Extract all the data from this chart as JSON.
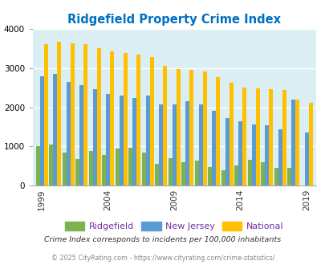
{
  "title": "Ridgefield Property Crime Index",
  "years": [
    1999,
    2000,
    2001,
    2002,
    2003,
    2004,
    2005,
    2006,
    2007,
    2008,
    2009,
    2010,
    2011,
    2012,
    2013,
    2014,
    2015,
    2016,
    2017,
    2018,
    2019,
    2020
  ],
  "ridgefield": [
    1010,
    1050,
    840,
    670,
    890,
    780,
    940,
    970,
    840,
    560,
    700,
    600,
    640,
    470,
    390,
    520,
    650,
    600,
    450,
    460,
    0,
    0
  ],
  "new_jersey": [
    2790,
    2850,
    2650,
    2560,
    2470,
    2350,
    2310,
    2230,
    2310,
    2080,
    2080,
    2160,
    2070,
    1920,
    1720,
    1640,
    1560,
    1550,
    1440,
    2190,
    1350,
    0
  ],
  "national": [
    3620,
    3670,
    3640,
    3610,
    3520,
    3440,
    3380,
    3340,
    3280,
    3060,
    2970,
    2950,
    2920,
    2770,
    2620,
    2510,
    2480,
    2470,
    2440,
    2190,
    2110,
    0
  ],
  "ridgefield_color": "#7db24e",
  "nj_color": "#5b9bd5",
  "national_color": "#ffc000",
  "bg_color": "#daeef3",
  "title_color": "#0070c0",
  "legend_text_color": "#7030a0",
  "subtitle": "Crime Index corresponds to incidents per 100,000 inhabitants",
  "footer": "© 2025 CityRating.com - https://www.cityrating.com/crime-statistics/",
  "ylim": [
    0,
    4000
  ],
  "yticks": [
    0,
    1000,
    2000,
    3000,
    4000
  ],
  "tick_years": [
    1999,
    2004,
    2009,
    2014,
    2019
  ]
}
